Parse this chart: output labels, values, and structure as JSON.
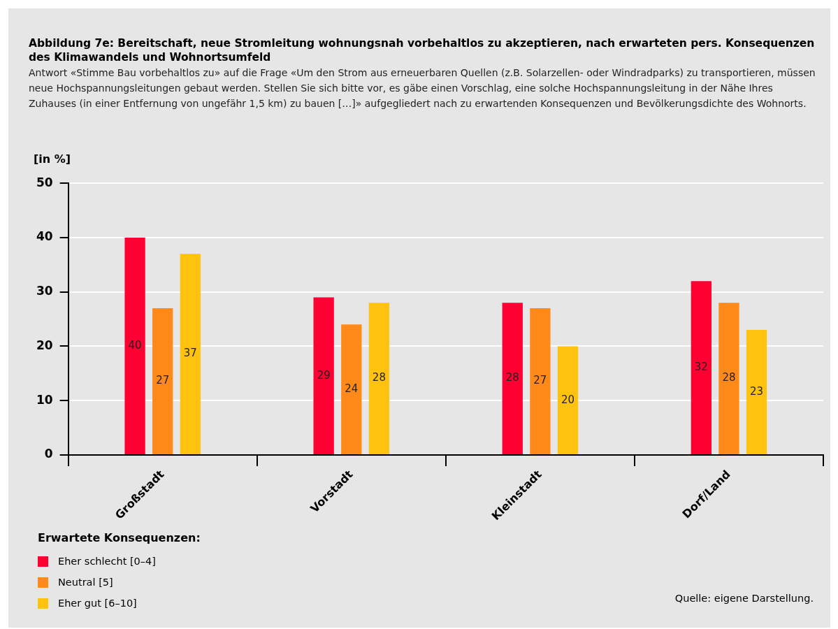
{
  "chart_data": {
    "type": "bar",
    "title": "Abbildung 7e: Bereitschaft, neue Stromleitung wohnungsnah vorbehaltlos zu akzeptieren, nach erwarteten pers. Konsequenzen des Klimawandels und Wohnortsumfeld",
    "subtitle": "Antwort «Stimme Bau vorbehaltlos zu» auf die Frage «Um den Strom aus erneuerbaren Quellen (z.B. Solarzellen- oder Windradparks) zu transportieren, müssen neue Hochspannungsleitungen gebaut werden. Stellen Sie sich bitte vor, es gäbe einen Vorschlag, eine solche Hochspannungsleitung in der Nähe Ihres Zuhauses (in einer Entfernung von ungefähr 1,5 km) zu bauen […]» aufgegliedert nach zu erwartenden Konsequenzen und Bevölkerungsdichte des Wohnorts.",
    "ylabel": "[in %]",
    "legend_title": "Erwartete Konsequenzen:",
    "annotations": [
      "Quelle: eigene Darstellung."
    ],
    "categories": [
      "Großstadt",
      "Vorstadt",
      "Kleinstadt",
      "Dorf/Land"
    ],
    "series": [
      {
        "name": "Eher schlecht [0–4]",
        "color": "#ff0033",
        "values": [
          40,
          29,
          28,
          32
        ]
      },
      {
        "name": "Neutral [5]",
        "color": "#ff8a1a",
        "values": [
          27,
          24,
          27,
          28
        ]
      },
      {
        "name": "Eher gut [6–10]",
        "color": "#ffc20e",
        "values": [
          37,
          28,
          20,
          23
        ]
      }
    ],
    "ylim": [
      0,
      50
    ],
    "yticks": [
      0,
      10,
      20,
      30,
      40,
      50
    ],
    "grid": "y",
    "legend": "bottom left",
    "data_labels": true
  }
}
